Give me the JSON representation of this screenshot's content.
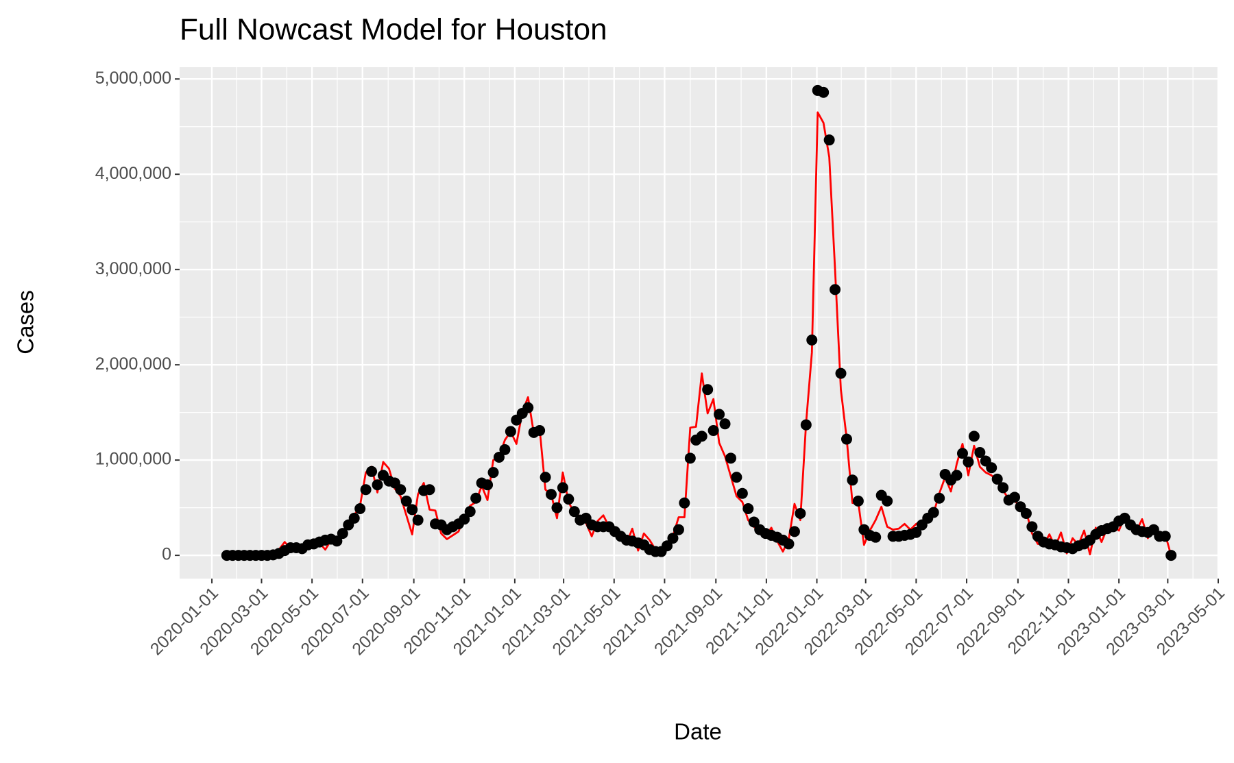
{
  "chart_data": {
    "type": "line",
    "title": "Full Nowcast Model for Houston",
    "x_label": "Date",
    "y_label": "Cases",
    "x": [
      "2020-01-19",
      "2020-01-26",
      "2020-02-02",
      "2020-02-09",
      "2020-02-16",
      "2020-02-23",
      "2020-03-01",
      "2020-03-08",
      "2020-03-15",
      "2020-03-22",
      "2020-03-29",
      "2020-04-05",
      "2020-04-12",
      "2020-04-19",
      "2020-04-26",
      "2020-05-03",
      "2020-05-10",
      "2020-05-17",
      "2020-05-24",
      "2020-05-31",
      "2020-06-07",
      "2020-06-14",
      "2020-06-21",
      "2020-06-28",
      "2020-07-05",
      "2020-07-12",
      "2020-07-19",
      "2020-07-26",
      "2020-08-02",
      "2020-08-09",
      "2020-08-16",
      "2020-08-23",
      "2020-08-30",
      "2020-09-06",
      "2020-09-13",
      "2020-09-20",
      "2020-09-27",
      "2020-10-04",
      "2020-10-11",
      "2020-10-18",
      "2020-10-25",
      "2020-11-01",
      "2020-11-08",
      "2020-11-15",
      "2020-11-22",
      "2020-11-29",
      "2020-12-06",
      "2020-12-13",
      "2020-12-20",
      "2020-12-27",
      "2021-01-03",
      "2021-01-10",
      "2021-01-17",
      "2021-01-24",
      "2021-01-31",
      "2021-02-07",
      "2021-02-14",
      "2021-02-21",
      "2021-02-28",
      "2021-03-07",
      "2021-03-14",
      "2021-03-21",
      "2021-03-28",
      "2021-04-04",
      "2021-04-11",
      "2021-04-18",
      "2021-04-25",
      "2021-05-02",
      "2021-05-09",
      "2021-05-16",
      "2021-05-23",
      "2021-05-30",
      "2021-06-06",
      "2021-06-13",
      "2021-06-20",
      "2021-06-27",
      "2021-07-04",
      "2021-07-11",
      "2021-07-18",
      "2021-07-25",
      "2021-08-01",
      "2021-08-08",
      "2021-08-15",
      "2021-08-22",
      "2021-08-29",
      "2021-09-05",
      "2021-09-12",
      "2021-09-19",
      "2021-09-26",
      "2021-10-03",
      "2021-10-10",
      "2021-10-17",
      "2021-10-24",
      "2021-10-31",
      "2021-11-07",
      "2021-11-14",
      "2021-11-21",
      "2021-11-28",
      "2021-12-05",
      "2021-12-12",
      "2021-12-19",
      "2021-12-26",
      "2022-01-02",
      "2022-01-09",
      "2022-01-16",
      "2022-01-23",
      "2022-01-30",
      "2022-02-06",
      "2022-02-13",
      "2022-02-20",
      "2022-02-27",
      "2022-03-06",
      "2022-03-13",
      "2022-03-20",
      "2022-03-27",
      "2022-04-03",
      "2022-04-10",
      "2022-04-17",
      "2022-04-24",
      "2022-05-01",
      "2022-05-08",
      "2022-05-15",
      "2022-05-22",
      "2022-05-29",
      "2022-06-05",
      "2022-06-12",
      "2022-06-19",
      "2022-06-26",
      "2022-07-03",
      "2022-07-10",
      "2022-07-17",
      "2022-07-24",
      "2022-07-31",
      "2022-08-07",
      "2022-08-14",
      "2022-08-21",
      "2022-08-28",
      "2022-09-04",
      "2022-09-11",
      "2022-09-18",
      "2022-09-25",
      "2022-10-02",
      "2022-10-09",
      "2022-10-16",
      "2022-10-23",
      "2022-10-30",
      "2022-11-06",
      "2022-11-13",
      "2022-11-20",
      "2022-11-27",
      "2022-12-04",
      "2022-12-11",
      "2022-12-18",
      "2022-12-25",
      "2023-01-01",
      "2023-01-08",
      "2023-01-15",
      "2023-01-22",
      "2023-01-29",
      "2023-02-05",
      "2023-02-12",
      "2023-02-19",
      "2023-02-26",
      "2023-03-05"
    ],
    "series": [
      {
        "kind": "line",
        "color": "#ff0000",
        "values": [
          0,
          30000,
          10000,
          0,
          5000,
          10000,
          0,
          15000,
          30000,
          60000,
          140000,
          70000,
          90000,
          60000,
          120000,
          150000,
          130000,
          60000,
          160000,
          180000,
          250000,
          310000,
          420000,
          520000,
          870000,
          930000,
          660000,
          980000,
          910000,
          700000,
          620000,
          420000,
          220000,
          640000,
          760000,
          480000,
          470000,
          230000,
          170000,
          210000,
          250000,
          400000,
          520000,
          560000,
          730000,
          580000,
          1000000,
          1030000,
          1210000,
          1300000,
          1170000,
          1500000,
          1660000,
          1280000,
          1330000,
          690000,
          640000,
          390000,
          870000,
          560000,
          440000,
          410000,
          340000,
          200000,
          360000,
          420000,
          300000,
          270000,
          200000,
          120000,
          280000,
          50000,
          230000,
          160000,
          60000,
          40000,
          120000,
          200000,
          400000,
          400000,
          1340000,
          1350000,
          1910000,
          1490000,
          1640000,
          1180000,
          1040000,
          830000,
          620000,
          560000,
          370000,
          300000,
          240000,
          200000,
          290000,
          150000,
          40000,
          170000,
          540000,
          370000,
          1390000,
          2130000,
          4650000,
          4540000,
          4180000,
          3000000,
          1740000,
          1230000,
          550000,
          560000,
          110000,
          260000,
          370000,
          510000,
          300000,
          270000,
          280000,
          330000,
          270000,
          330000,
          360000,
          420000,
          440000,
          650000,
          820000,
          670000,
          960000,
          1170000,
          840000,
          1150000,
          930000,
          870000,
          840000,
          780000,
          680000,
          590000,
          590000,
          470000,
          460000,
          230000,
          120000,
          110000,
          220000,
          90000,
          240000,
          20000,
          180000,
          110000,
          260000,
          10000,
          290000,
          140000,
          290000,
          310000,
          260000,
          410000,
          340000,
          250000,
          380000,
          180000,
          310000,
          190000,
          220000,
          0
        ]
      },
      {
        "kind": "point",
        "color": "#000000",
        "values": [
          0,
          0,
          0,
          0,
          0,
          0,
          0,
          0,
          5000,
          20000,
          50000,
          80000,
          80000,
          70000,
          110000,
          120000,
          140000,
          160000,
          170000,
          150000,
          230000,
          320000,
          390000,
          490000,
          690000,
          880000,
          740000,
          840000,
          780000,
          760000,
          690000,
          570000,
          480000,
          370000,
          680000,
          690000,
          330000,
          320000,
          270000,
          300000,
          330000,
          380000,
          460000,
          600000,
          760000,
          740000,
          870000,
          1030000,
          1110000,
          1300000,
          1420000,
          1490000,
          1550000,
          1290000,
          1310000,
          820000,
          640000,
          500000,
          710000,
          590000,
          460000,
          370000,
          390000,
          320000,
          300000,
          300000,
          300000,
          250000,
          200000,
          160000,
          150000,
          130000,
          110000,
          60000,
          40000,
          40000,
          100000,
          180000,
          270000,
          550000,
          1020000,
          1210000,
          1250000,
          1740000,
          1310000,
          1480000,
          1380000,
          1020000,
          820000,
          650000,
          490000,
          350000,
          270000,
          230000,
          210000,
          190000,
          160000,
          120000,
          250000,
          440000,
          1370000,
          2260000,
          4880000,
          4860000,
          4360000,
          2790000,
          1910000,
          1220000,
          790000,
          570000,
          270000,
          210000,
          190000,
          630000,
          570000,
          200000,
          200000,
          210000,
          220000,
          240000,
          320000,
          390000,
          450000,
          600000,
          850000,
          790000,
          840000,
          1070000,
          980000,
          1250000,
          1080000,
          990000,
          920000,
          800000,
          710000,
          580000,
          610000,
          510000,
          440000,
          300000,
          200000,
          140000,
          120000,
          110000,
          90000,
          80000,
          70000,
          100000,
          120000,
          160000,
          220000,
          260000,
          280000,
          300000,
          360000,
          390000,
          320000,
          270000,
          250000,
          240000,
          270000,
          200000,
          200000,
          0
        ]
      }
    ],
    "xlim": [
      "2019-11-23",
      "2023-05-01"
    ],
    "xticks": [
      "2020-01-01",
      "2020-03-01",
      "2020-05-01",
      "2020-07-01",
      "2020-09-01",
      "2020-11-01",
      "2021-01-01",
      "2021-03-01",
      "2021-05-01",
      "2021-07-01",
      "2021-09-01",
      "2021-11-01",
      "2022-01-01",
      "2022-03-01",
      "2022-05-01",
      "2022-07-01",
      "2022-09-01",
      "2022-11-01",
      "2023-01-01",
      "2023-03-01",
      "2023-05-01"
    ],
    "ylim": [
      -244000,
      5124000
    ],
    "yticks": [
      0,
      {
        "value": 1000000,
        "label": "1,000,000"
      },
      {
        "value": 2000000,
        "label": "2,000,000"
      },
      {
        "value": 3000000,
        "label": "3,000,000"
      },
      {
        "value": 4000000,
        "label": "4,000,000"
      },
      {
        "value": 5000000,
        "label": "5,000,000"
      }
    ],
    "grid": true,
    "panel_color": "#ebebeb"
  }
}
